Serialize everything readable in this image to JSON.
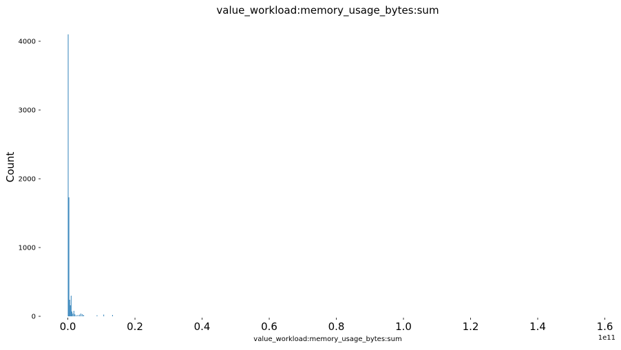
{
  "chart_data": {
    "type": "bar",
    "title": "value_workload:memory_usage_bytes:sum",
    "xlabel": "value_workload:memory_usage_bytes:sum",
    "ylabel": "Count",
    "x_offset_label": "1e11",
    "x_ticks": [
      0.0,
      0.2,
      0.4,
      0.6,
      0.8,
      1.0,
      1.2,
      1.4,
      1.6
    ],
    "x_tick_labels": [
      "0.0",
      "0.2",
      "0.4",
      "0.6",
      "0.8",
      "1.0",
      "1.2",
      "1.4",
      "1.6"
    ],
    "y_ticks": [
      0,
      1000,
      2000,
      3000,
      4000
    ],
    "y_tick_labels": [
      "0",
      "1000",
      "2000",
      "3000",
      "4000"
    ],
    "xlim": [
      -0.075,
      1.64
    ],
    "ylim": [
      0,
      4300
    ],
    "grid": false,
    "bar_color": "#1f77b4",
    "x_units_note": "x values in units of 1e11",
    "bars": [
      {
        "x": 0.0,
        "w": 0.0022,
        "y": 4100
      },
      {
        "x": 0.0022,
        "w": 0.0022,
        "y": 1730
      },
      {
        "x": 0.0044,
        "w": 0.0022,
        "y": 240
      },
      {
        "x": 0.0066,
        "w": 0.0022,
        "y": 160
      },
      {
        "x": 0.0088,
        "w": 0.0022,
        "y": 300
      },
      {
        "x": 0.011,
        "w": 0.0022,
        "y": 70
      },
      {
        "x": 0.014,
        "w": 0.0022,
        "y": 40
      },
      {
        "x": 0.017,
        "w": 0.0022,
        "y": 80
      },
      {
        "x": 0.02,
        "w": 0.0022,
        "y": 30
      },
      {
        "x": 0.024,
        "w": 0.0022,
        "y": 15
      },
      {
        "x": 0.029,
        "w": 0.0022,
        "y": 20
      },
      {
        "x": 0.034,
        "w": 0.0022,
        "y": 25
      },
      {
        "x": 0.038,
        "w": 0.0022,
        "y": 40
      },
      {
        "x": 0.042,
        "w": 0.0022,
        "y": 30
      },
      {
        "x": 0.046,
        "w": 0.0022,
        "y": 20
      },
      {
        "x": 0.086,
        "w": 0.0022,
        "y": 15
      },
      {
        "x": 0.106,
        "w": 0.0022,
        "y": 25
      },
      {
        "x": 0.132,
        "w": 0.0022,
        "y": 20
      }
    ]
  }
}
